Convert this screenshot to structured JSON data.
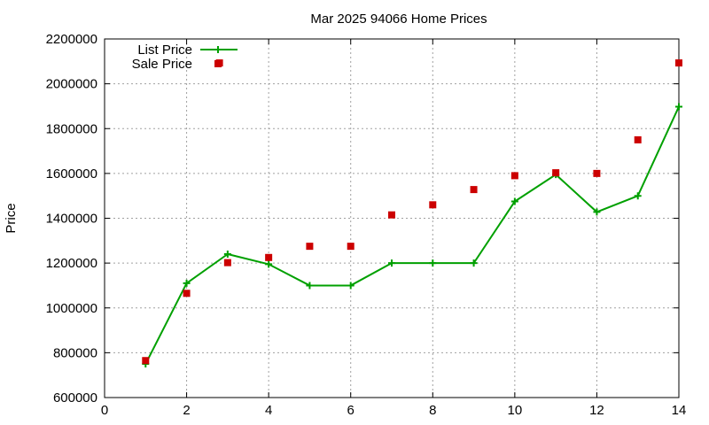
{
  "chart_data": {
    "type": "line",
    "title": "Mar 2025 94066 Home Prices",
    "xlabel": "",
    "ylabel": "Price",
    "xlim": [
      0,
      14
    ],
    "ylim": [
      600000,
      2200000
    ],
    "x_ticks": [
      0,
      2,
      4,
      6,
      8,
      10,
      12,
      14
    ],
    "y_ticks": [
      600000,
      800000,
      1000000,
      1200000,
      1400000,
      1600000,
      1800000,
      2000000,
      2200000
    ],
    "grid": true,
    "legend_position": "top-left",
    "series": [
      {
        "name": "List Price",
        "style": "line-with-plus-markers",
        "color": "#00a000",
        "points": [
          [
            1,
            750000
          ],
          [
            2,
            1110000
          ],
          [
            3,
            1240000
          ],
          [
            4,
            1195000
          ],
          [
            5,
            1100000
          ],
          [
            6,
            1100000
          ],
          [
            7,
            1200000
          ],
          [
            8,
            1200000
          ],
          [
            9,
            1200000
          ],
          [
            10,
            1475000
          ],
          [
            11,
            1595000
          ],
          [
            12,
            1428000
          ],
          [
            13,
            1500000
          ],
          [
            14,
            1898000
          ]
        ]
      },
      {
        "name": "Sale Price",
        "style": "square-markers",
        "color": "#cc0000",
        "points": [
          [
            1,
            765000
          ],
          [
            2,
            1065000
          ],
          [
            2.8,
            2093000
          ],
          [
            3,
            1202000
          ],
          [
            4,
            1225000
          ],
          [
            5,
            1275000
          ],
          [
            6,
            1275000
          ],
          [
            7,
            1415000
          ],
          [
            8,
            1460000
          ],
          [
            9,
            1528000
          ],
          [
            10,
            1590000
          ],
          [
            11,
            1603000
          ],
          [
            12,
            1600000
          ],
          [
            13,
            1750000
          ],
          [
            14,
            2093000
          ]
        ]
      }
    ]
  }
}
